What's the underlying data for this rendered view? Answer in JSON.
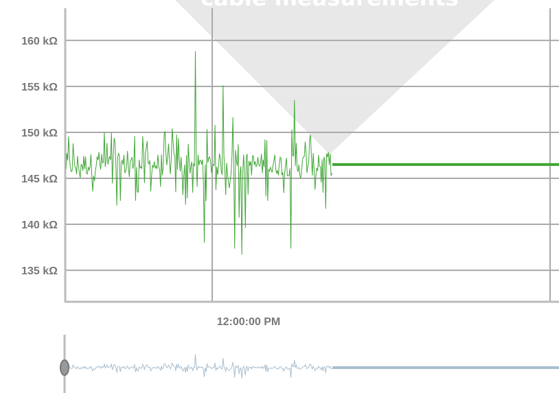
{
  "chart_data": {
    "type": "line",
    "title": "cable measurements",
    "xlabel": "",
    "ylabel": "",
    "y_unit": "kΩ",
    "yticks": [
      160,
      155,
      150,
      145,
      140,
      135
    ],
    "ytick_labels": [
      "160 kΩ",
      "155 kΩ",
      "150 kΩ",
      "145 kΩ",
      "140 kΩ",
      "135 kΩ"
    ],
    "ylim": [
      131.5,
      163.5
    ],
    "xtick_labels": [
      "12:00:00 PM"
    ],
    "baseline_value": 146.5,
    "noise_range": [
      136.7,
      159.7
    ],
    "grid": true,
    "series": [
      {
        "color": "#3fa535",
        "values": []
      }
    ],
    "navigator": {
      "color": "#a9bfcf",
      "handle_color": "#8c8c8c"
    },
    "colors": {
      "grid": "#aaaaaa",
      "axis": "#bbbbbb",
      "label": "#777777",
      "watermark": "#e8e8e8"
    }
  }
}
